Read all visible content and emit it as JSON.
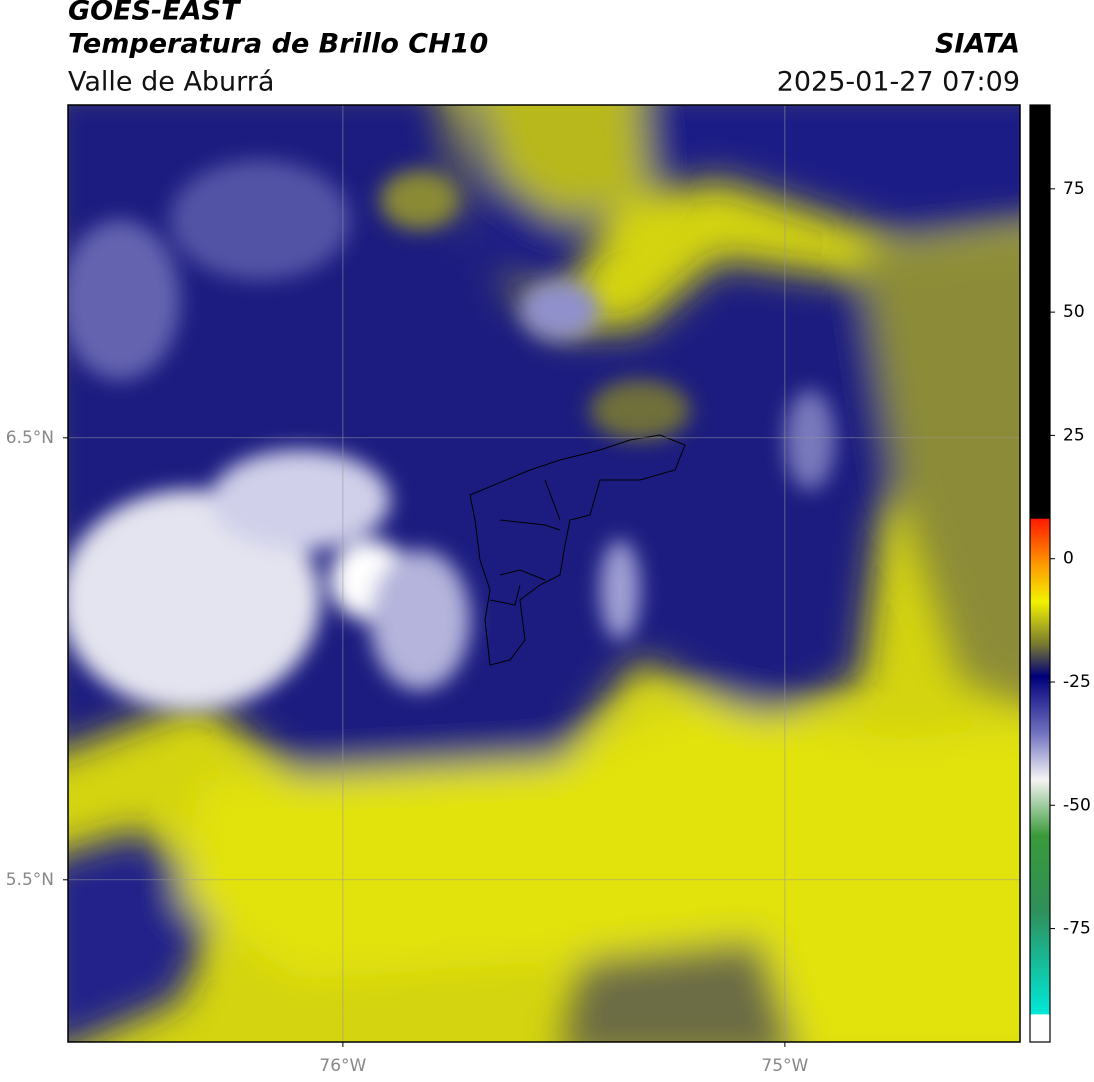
{
  "header": {
    "title": "GOES-EAST",
    "subtitle": "Temperatura de Brillo CH10",
    "region": "Valle de Aburrá",
    "source": "SIATA",
    "datetime": "2025-01-27 07:09"
  },
  "map": {
    "lonlim": [
      -76.622,
      -74.468
    ],
    "latlim": [
      5.133,
      7.253
    ],
    "xticks": [
      {
        "value": -76,
        "label": "76°W"
      },
      {
        "value": -75,
        "label": "75°W"
      }
    ],
    "yticks": [
      {
        "value": 6.5,
        "label": "6.5°N"
      },
      {
        "value": 5.5,
        "label": "5.5°N"
      }
    ],
    "grid": true
  },
  "colorbar": {
    "clim": [
      -98,
      92
    ],
    "ticks": [
      75,
      50,
      25,
      0,
      -25,
      -50,
      -75
    ]
  }
}
